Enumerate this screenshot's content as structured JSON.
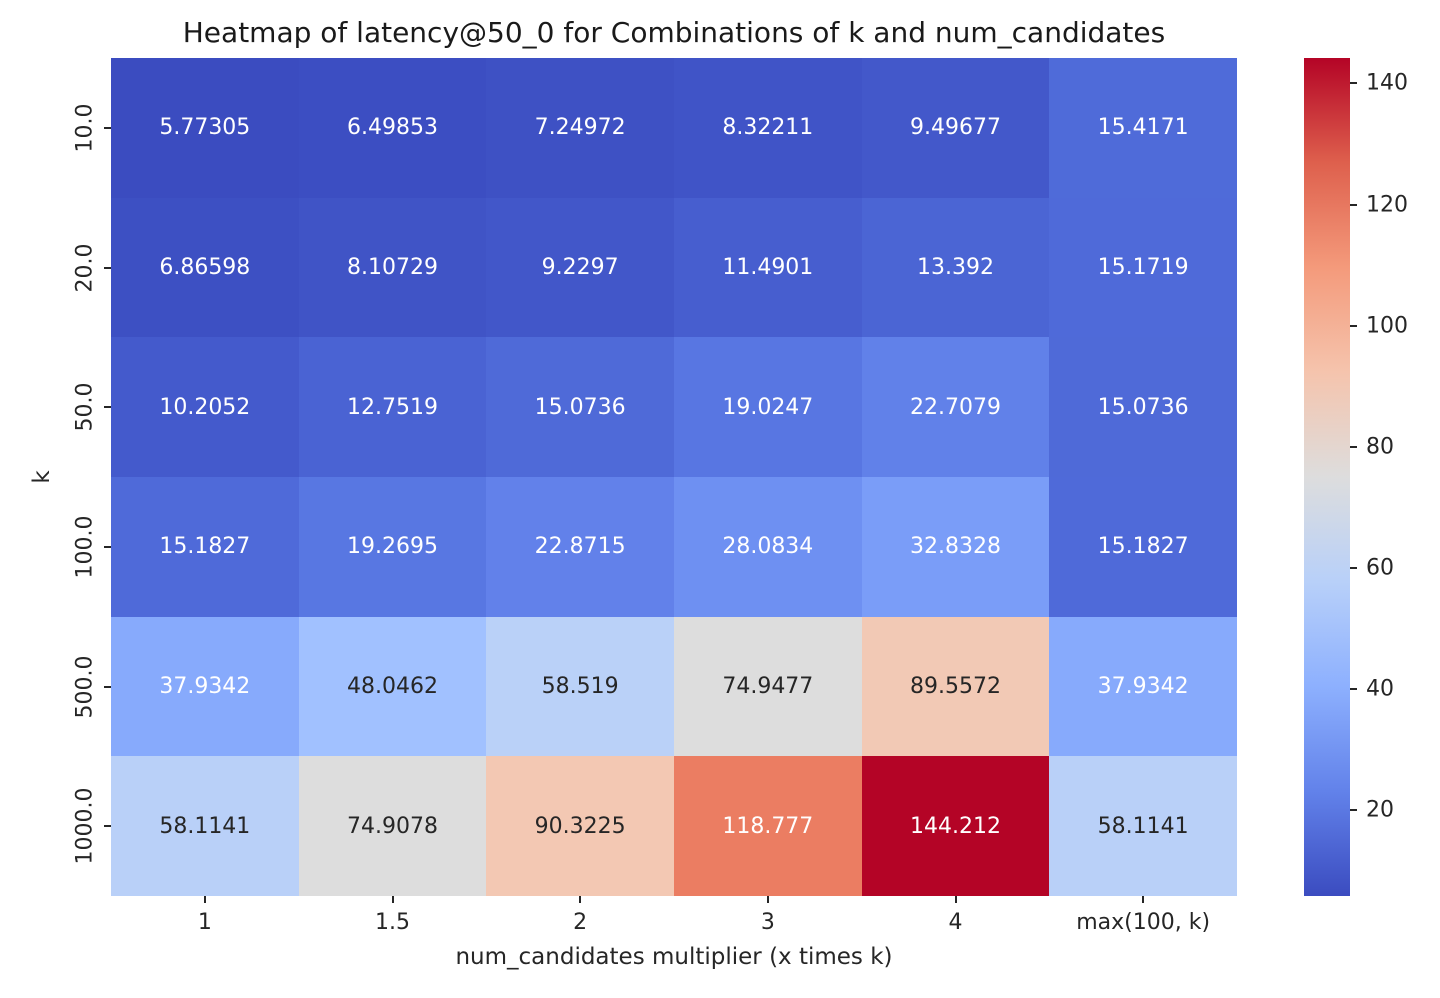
{
  "chart_data": {
    "type": "heatmap",
    "title": "Heatmap of latency@50_0 for Combinations of k and num_candidates",
    "xlabel": "num_candidates multiplier (x times k)",
    "ylabel": "k",
    "x_tick_labels": [
      "1",
      "1.5",
      "2",
      "3",
      "4",
      "max(100, k)"
    ],
    "y_tick_labels": [
      "10.0",
      "20.0",
      "50.0",
      "100.0",
      "500.0",
      "1000.0"
    ],
    "values": [
      [
        5.77305,
        6.49853,
        7.24972,
        8.32211,
        9.49677,
        15.4171
      ],
      [
        6.86598,
        8.10729,
        9.2297,
        11.4901,
        13.392,
        15.1719
      ],
      [
        10.2052,
        12.7519,
        15.0736,
        19.0247,
        22.7079,
        15.0736
      ],
      [
        15.1827,
        19.2695,
        22.8715,
        28.0834,
        32.8328,
        15.1827
      ],
      [
        37.9342,
        48.0462,
        58.519,
        74.9477,
        89.5572,
        37.9342
      ],
      [
        58.1141,
        74.9078,
        90.3225,
        118.777,
        144.212,
        58.1141
      ]
    ],
    "annotations": [
      [
        "5.77305",
        "6.49853",
        "7.24972",
        "8.32211",
        "9.49677",
        "15.4171"
      ],
      [
        "6.86598",
        "8.10729",
        "9.2297",
        "11.4901",
        "13.392",
        "15.1719"
      ],
      [
        "10.2052",
        "12.7519",
        "15.0736",
        "19.0247",
        "22.7079",
        "15.0736"
      ],
      [
        "15.1827",
        "19.2695",
        "22.8715",
        "28.0834",
        "32.8328",
        "15.1827"
      ],
      [
        "37.9342",
        "48.0462",
        "58.519",
        "74.9477",
        "89.5572",
        "37.9342"
      ],
      [
        "58.1141",
        "74.9078",
        "90.3225",
        "118.777",
        "144.212",
        "58.1141"
      ]
    ],
    "cell_colors": [
      [
        "#3B4CC0",
        "#3C4EC2",
        "#3E51C4",
        "#4054C7",
        "#4358CA",
        "#4F6BD9"
      ],
      [
        "#3D50C3",
        "#4054C6",
        "#4257C9",
        "#475ECF",
        "#4B65D4",
        "#4F6AD9"
      ],
      [
        "#445ACC",
        "#4A63D3",
        "#4F6AD8",
        "#5876E2",
        "#6181E9",
        "#4F6AD8"
      ],
      [
        "#4F6AD9",
        "#5877E2",
        "#6281EA",
        "#6E90F2",
        "#7A9DF8",
        "#4F6AD9"
      ],
      [
        "#87AAFC",
        "#A1C1FF",
        "#BAD1F8",
        "#DDDDDD",
        "#F2C9B5",
        "#87AAFC"
      ],
      [
        "#B9D0F8",
        "#DDDDDD",
        "#F3C8B3",
        "#EB7D62",
        "#B40426",
        "#B9D0F8"
      ]
    ],
    "annotation_colors": [
      [
        "#FFFFFF",
        "#FFFFFF",
        "#FFFFFF",
        "#FFFFFF",
        "#FFFFFF",
        "#FFFFFF"
      ],
      [
        "#FFFFFF",
        "#FFFFFF",
        "#FFFFFF",
        "#FFFFFF",
        "#FFFFFF",
        "#FFFFFF"
      ],
      [
        "#FFFFFF",
        "#FFFFFF",
        "#FFFFFF",
        "#FFFFFF",
        "#FFFFFF",
        "#FFFFFF"
      ],
      [
        "#FFFFFF",
        "#FFFFFF",
        "#FFFFFF",
        "#FFFFFF",
        "#FFFFFF",
        "#FFFFFF"
      ],
      [
        "#FFFFFF",
        "#262626",
        "#262626",
        "#262626",
        "#262626",
        "#FFFFFF"
      ],
      [
        "#262626",
        "#262626",
        "#262626",
        "#FFFFFF",
        "#FFFFFF",
        "#262626"
      ]
    ],
    "colormap": "coolwarm",
    "vmin": 5.77305,
    "vmax": 144.212,
    "grid": false,
    "colorbar": {
      "position": "right",
      "ticks": [
        20,
        40,
        60,
        80,
        100,
        120,
        140
      ],
      "gradient_stops": [
        {
          "t": 0.0,
          "color": "#3B4CC0"
        },
        {
          "t": 0.125,
          "color": "#6282EA"
        },
        {
          "t": 0.25,
          "color": "#8DB0FE"
        },
        {
          "t": 0.375,
          "color": "#B8D0F9"
        },
        {
          "t": 0.5,
          "color": "#DDDDDD"
        },
        {
          "t": 0.625,
          "color": "#F5C4AD"
        },
        {
          "t": 0.75,
          "color": "#F49A7B"
        },
        {
          "t": 0.875,
          "color": "#DE604D"
        },
        {
          "t": 1.0,
          "color": "#B40426"
        }
      ]
    }
  }
}
